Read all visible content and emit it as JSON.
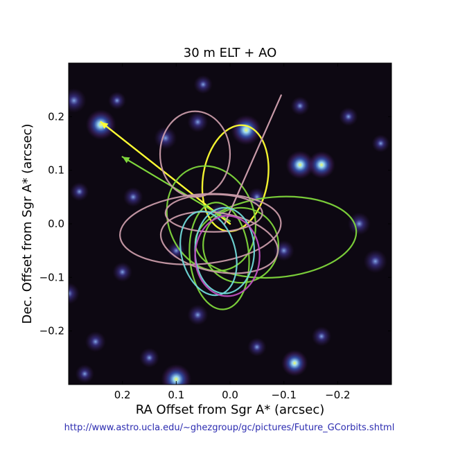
{
  "chart_data": {
    "type": "scatter",
    "title": "30 m ELT + AO",
    "xlabel": "RA Offset from Sgr A* (arcsec)",
    "ylabel": "Dec. Offset from Sgr A* (arcsec)",
    "xlim": [
      0.3,
      -0.3
    ],
    "ylim": [
      -0.3,
      0.3
    ],
    "x_ticks": [
      {
        "value": 0.2,
        "label": "0.2"
      },
      {
        "value": 0.1,
        "label": "0.1"
      },
      {
        "value": 0.0,
        "label": "0.0"
      },
      {
        "value": -0.1,
        "label": "−0.1"
      },
      {
        "value": -0.2,
        "label": "−0.2"
      }
    ],
    "y_ticks": [
      {
        "value": 0.2,
        "label": "0.2"
      },
      {
        "value": 0.1,
        "label": "0.1"
      },
      {
        "value": 0.0,
        "label": "0.0"
      },
      {
        "value": -0.1,
        "label": "−0.1"
      },
      {
        "value": -0.2,
        "label": "−0.2"
      }
    ],
    "grid": false,
    "background_color": "#0d0812",
    "stars": [
      {
        "x": 0.24,
        "y": 0.185,
        "b": 1.0
      },
      {
        "x": -0.03,
        "y": 0.175,
        "b": 1.0
      },
      {
        "x": 0.1,
        "y": -0.29,
        "b": 1.0
      },
      {
        "x": -0.13,
        "y": 0.11,
        "b": 0.9
      },
      {
        "x": -0.17,
        "y": 0.11,
        "b": 0.85
      },
      {
        "x": -0.12,
        "y": -0.26,
        "b": 0.8
      },
      {
        "x": 0.29,
        "y": 0.23,
        "b": 0.7
      },
      {
        "x": -0.27,
        "y": -0.07,
        "b": 0.65
      },
      {
        "x": 0.12,
        "y": 0.16,
        "b": 0.6
      },
      {
        "x": -0.24,
        "y": 0.0,
        "b": 0.6
      },
      {
        "x": 0.06,
        "y": -0.17,
        "b": 0.5
      },
      {
        "x": 0.3,
        "y": -0.13,
        "b": 0.55
      },
      {
        "x": -0.1,
        "y": -0.05,
        "b": 0.5
      },
      {
        "x": 0.2,
        "y": -0.09,
        "b": 0.45
      },
      {
        "x": 0.06,
        "y": 0.19,
        "b": 0.5
      },
      {
        "x": 0.25,
        "y": -0.22,
        "b": 0.5
      },
      {
        "x": -0.17,
        "y": -0.21,
        "b": 0.45
      },
      {
        "x": 0.15,
        "y": -0.25,
        "b": 0.45
      },
      {
        "x": -0.05,
        "y": -0.23,
        "b": 0.4
      },
      {
        "x": 0.27,
        "y": -0.28,
        "b": 0.4
      },
      {
        "x": -0.22,
        "y": 0.2,
        "b": 0.4
      },
      {
        "x": 0.05,
        "y": 0.26,
        "b": 0.4
      },
      {
        "x": -0.13,
        "y": 0.22,
        "b": 0.4
      },
      {
        "x": 0.18,
        "y": 0.05,
        "b": 0.45
      },
      {
        "x": 0.02,
        "y": 0.02,
        "b": 0.45
      },
      {
        "x": -0.05,
        "y": 0.05,
        "b": 0.4
      },
      {
        "x": 0.1,
        "y": -0.05,
        "b": 0.35
      },
      {
        "x": 0.28,
        "y": 0.06,
        "b": 0.4
      },
      {
        "x": -0.28,
        "y": 0.15,
        "b": 0.35
      },
      {
        "x": 0.21,
        "y": 0.23,
        "b": 0.35
      }
    ],
    "orbits": [
      {
        "color": "#ffff33",
        "width": 2.4,
        "points": [
          [
            0.24,
            0.19
          ],
          [
            0.0,
            0.0
          ]
        ],
        "arrow": true
      },
      {
        "color": "#ffff33",
        "width": 2.4,
        "ellipse": {
          "cx": -0.01,
          "cy": 0.085,
          "rx": 0.06,
          "ry": 0.1,
          "angle": -10
        }
      },
      {
        "color": "#7fd63c",
        "width": 2.2,
        "points": [
          [
            0.2,
            0.125
          ],
          [
            0.0,
            0.005
          ]
        ],
        "arrow": true
      },
      {
        "color": "#7fd63c",
        "width": 2.2,
        "ellipse": {
          "cx": -0.085,
          "cy": -0.025,
          "rx": 0.15,
          "ry": 0.075,
          "angle": 5
        }
      },
      {
        "color": "#7fd63c",
        "width": 2.2,
        "ellipse": {
          "cx": 0.035,
          "cy": 0.01,
          "rx": 0.08,
          "ry": 0.1,
          "angle": 20
        }
      },
      {
        "color": "#7fd63c",
        "width": 2.2,
        "ellipse": {
          "cx": 0.02,
          "cy": -0.06,
          "rx": 0.055,
          "ry": 0.1,
          "angle": 5
        }
      },
      {
        "color": "#7fd63c",
        "width": 2.2,
        "ellipse": {
          "cx": -0.02,
          "cy": -0.04,
          "rx": 0.07,
          "ry": 0.07,
          "angle": 0
        }
      },
      {
        "color": "#c89aa8",
        "width": 2.2,
        "ellipse": {
          "cx": 0.055,
          "cy": -0.01,
          "rx": 0.15,
          "ry": 0.065,
          "angle": 5
        }
      },
      {
        "color": "#c89aa8",
        "width": 2.2,
        "ellipse": {
          "cx": 0.065,
          "cy": 0.13,
          "rx": 0.065,
          "ry": 0.08,
          "angle": 0
        }
      },
      {
        "color": "#c89aa8",
        "width": 2.2,
        "ellipse": {
          "cx": 0.02,
          "cy": -0.035,
          "rx": 0.11,
          "ry": 0.055,
          "angle": -10
        }
      },
      {
        "color": "#c89aa8",
        "width": 2.2,
        "ellipse": {
          "cx": 0.03,
          "cy": 0.02,
          "rx": 0.09,
          "ry": 0.035,
          "angle": 0
        }
      },
      {
        "color": "#c89aa8",
        "width": 2.2,
        "points": [
          [
            0.01,
            0.0
          ],
          [
            -0.095,
            0.24
          ]
        ]
      },
      {
        "color": "#70d8d8",
        "width": 2.2,
        "ellipse": {
          "cx": 0.04,
          "cy": -0.055,
          "rx": 0.05,
          "ry": 0.08,
          "angle": 15
        }
      },
      {
        "color": "#70d8d8",
        "width": 2.2,
        "ellipse": {
          "cx": 0.01,
          "cy": -0.05,
          "rx": 0.055,
          "ry": 0.08,
          "angle": 0
        }
      },
      {
        "color": "#c050c0",
        "width": 2.2,
        "ellipse": {
          "cx": 0.005,
          "cy": -0.06,
          "rx": 0.06,
          "ry": 0.075,
          "angle": 0
        }
      }
    ]
  },
  "footer": {
    "source_url": "http://www.astro.ucla.edu/~ghezgroup/gc/pictures/Future_GCorbits.shtml"
  }
}
